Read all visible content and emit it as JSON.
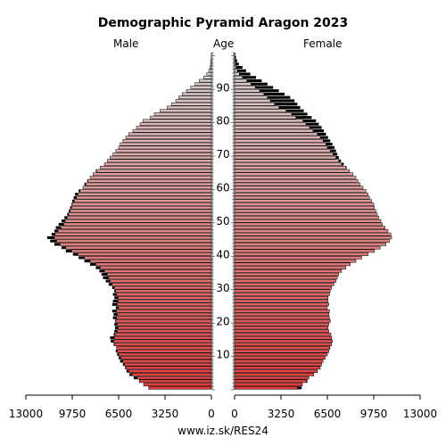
{
  "title": "Demographic Pyramid Aragon 2023",
  "header": {
    "male": "Male",
    "age": "Age",
    "female": "Female"
  },
  "footer": "www.iz.sk/RES24",
  "colors": {
    "young": "#e03c3c",
    "old": "#d9d9d9",
    "outline": "#000000",
    "excess": "#000000"
  },
  "chart_data": {
    "type": "bar",
    "orientation": "horizontal-pyramid",
    "title": "Demographic Pyramid Aragon 2023",
    "age_axis": {
      "label": "Age",
      "min": 0,
      "max": 100,
      "ticks": [
        10,
        20,
        30,
        40,
        50,
        60,
        70,
        80,
        90
      ]
    },
    "x_axis": {
      "ticks_male": [
        "13000",
        "9750",
        "6500",
        "3250",
        "0"
      ],
      "ticks_female": [
        "0",
        "3250",
        "6500",
        "9750",
        "13000"
      ],
      "max": 13000
    },
    "series": [
      {
        "name": "Male",
        "values": [
          4400,
          4750,
          5050,
          5450,
          5750,
          5950,
          6050,
          6200,
          6400,
          6500,
          6600,
          6700,
          6650,
          6850,
          7050,
          7100,
          6850,
          6800,
          6750,
          6800,
          6750,
          6900,
          6850,
          6950,
          6700,
          6950,
          6900,
          6800,
          6900,
          6800,
          6950,
          7200,
          7400,
          7600,
          7700,
          7850,
          8100,
          8500,
          8900,
          9300,
          9700,
          10200,
          10500,
          11000,
          11300,
          11500,
          11200,
          11000,
          10900,
          10700,
          10500,
          10300,
          10100,
          10000,
          9900,
          9800,
          9750,
          9650,
          9550,
          9300,
          9000,
          8900,
          8700,
          8500,
          8300,
          8100,
          7800,
          7500,
          7300,
          7100,
          6900,
          6700,
          6500,
          6400,
          6200,
          6000,
          5800,
          5500,
          5250,
          5000,
          4800,
          4300,
          4000,
          3600,
          3100,
          2800,
          2500,
          2300,
          2050,
          1750,
          1450,
          1150,
          850,
          550,
          330,
          190,
          110,
          60,
          30,
          15,
          10
        ]
      },
      {
        "name": "Female",
        "values": [
          4700,
          4750,
          5100,
          5200,
          5550,
          5800,
          6000,
          6100,
          6200,
          6350,
          6500,
          6600,
          6700,
          6800,
          6850,
          6800,
          6750,
          6600,
          6550,
          6600,
          6700,
          6650,
          6600,
          6650,
          6500,
          6600,
          6550,
          6550,
          6650,
          6700,
          6800,
          6950,
          7100,
          7200,
          7300,
          7500,
          7800,
          8100,
          8500,
          8900,
          9350,
          9800,
          10200,
          10600,
          10850,
          11000,
          10950,
          10750,
          10550,
          10350,
          10250,
          10100,
          10000,
          9900,
          9800,
          9750,
          9600,
          9450,
          9350,
          9200,
          9000,
          8800,
          8650,
          8500,
          8300,
          8050,
          7850,
          7650,
          7450,
          7300,
          7200,
          7100,
          7000,
          6850,
          6700,
          6550,
          6400,
          6250,
          6100,
          5900,
          5700,
          5400,
          5100,
          4850,
          4600,
          4400,
          4200,
          3900,
          3500,
          3100,
          2700,
          2300,
          1900,
          1500,
          1100,
          800,
          550,
          300,
          180,
          100,
          50
        ]
      }
    ]
  }
}
